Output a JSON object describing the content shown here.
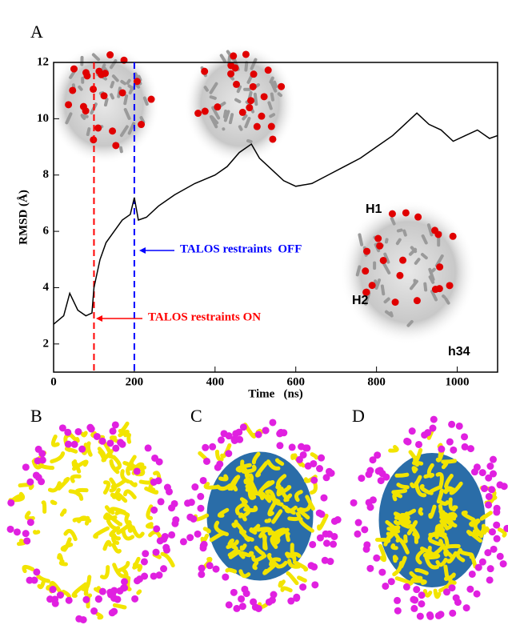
{
  "chart_data": {
    "type": "line",
    "panels": [
      "A",
      "B",
      "C",
      "D"
    ],
    "x_label": "Time   (ns)",
    "y_label": "RMSD (Å)",
    "x": [
      0,
      25,
      40,
      60,
      80,
      95,
      100,
      115,
      130,
      150,
      170,
      190,
      200,
      210,
      230,
      260,
      300,
      350,
      400,
      430,
      460,
      490,
      510,
      540,
      570,
      600,
      640,
      680,
      720,
      760,
      800,
      840,
      870,
      900,
      930,
      960,
      990,
      1020,
      1050,
      1080,
      1100
    ],
    "series": [
      {
        "name": "RMSD",
        "color": "#000000",
        "values": [
          2.7,
          3.0,
          3.8,
          3.2,
          3.0,
          3.1,
          4.0,
          5.0,
          5.6,
          6.0,
          6.4,
          6.6,
          7.2,
          6.4,
          6.5,
          6.9,
          7.3,
          7.7,
          8.0,
          8.3,
          8.8,
          9.1,
          8.6,
          8.2,
          7.8,
          7.6,
          7.7,
          8.0,
          8.3,
          8.6,
          9.0,
          9.4,
          9.8,
          10.2,
          9.8,
          9.6,
          9.2,
          9.4,
          9.6,
          9.3,
          9.4
        ]
      }
    ],
    "xlim": [
      0,
      1100
    ],
    "xticks": [
      0,
      200,
      400,
      600,
      800,
      1000
    ],
    "ylim": [
      1,
      12
    ],
    "yticks": [
      2,
      4,
      6,
      8,
      10,
      12
    ],
    "vlines": [
      {
        "x": 100,
        "color": "#ff0000"
      },
      {
        "x": 200,
        "color": "#0000ff"
      }
    ],
    "annotations": [
      {
        "text": "TALOS restraints  OFF",
        "color": "#0000ff"
      },
      {
        "text": "TALOS restraints ON",
        "color": "#ff0000"
      }
    ],
    "helix_labels": [
      "H1",
      "H2",
      "h34"
    ]
  }
}
